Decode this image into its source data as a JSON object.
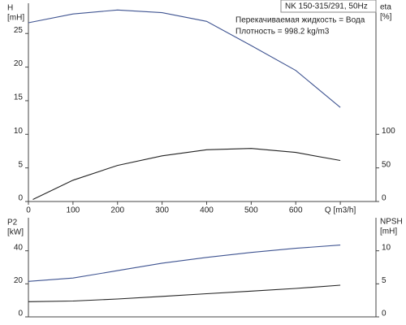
{
  "chart_data": [
    {
      "type": "line",
      "title": "NK 150-315/291, 50Hz",
      "annotations": [
        "Перекачиваемая жидкость = Вода",
        "Плотность = 998.2 kg/m3"
      ],
      "ylabel": [
        "H",
        "[mH]"
      ],
      "y2label": [
        "eta",
        "[%]"
      ],
      "xlim": [
        0,
        780
      ],
      "xticks": [
        0,
        100,
        200,
        300,
        400,
        500,
        600,
        {
          "value": 700,
          "label": "Q [m3/h]"
        }
      ],
      "ylim": [
        0,
        29.5
      ],
      "yticks": [
        0,
        5,
        10,
        15,
        20,
        25
      ],
      "y2lim": [
        0,
        295
      ],
      "y2ticks": [
        0,
        50,
        100
      ],
      "series": [
        {
          "name": "H",
          "color": "#3f5491",
          "x": [
            0,
            100,
            200,
            300,
            400,
            500,
            600,
            700
          ],
          "values": [
            26.6,
            27.9,
            28.5,
            28.1,
            26.8,
            23.2,
            19.5,
            14.0
          ]
        },
        {
          "name": "eta",
          "color": "#222222",
          "axis": "y2",
          "x": [
            10,
            100,
            200,
            300,
            400,
            500,
            600,
            700
          ],
          "values": [
            3,
            31.7,
            53.7,
            68,
            77,
            79,
            73,
            61
          ]
        }
      ]
    },
    {
      "type": "line",
      "ylabel": [
        "P2",
        "[kW]"
      ],
      "y2label": [
        "NPSH",
        "[mH]"
      ],
      "xlim": [
        0,
        780
      ],
      "ylim": [
        0,
        60
      ],
      "yticks": [
        0,
        20,
        40
      ],
      "y2lim": [
        0,
        15
      ],
      "y2ticks": [
        0,
        5,
        10
      ],
      "series": [
        {
          "name": "P2",
          "color": "#3f5491",
          "x": [
            0,
            100,
            200,
            300,
            400,
            500,
            600,
            700
          ],
          "values": [
            21.5,
            23.5,
            28,
            32.5,
            36,
            39,
            41.5,
            43.5
          ]
        },
        {
          "name": "NPSH",
          "color": "#222222",
          "axis": "y2",
          "x": [
            0,
            100,
            200,
            300,
            400,
            500,
            600,
            700
          ],
          "values": [
            2.3,
            2.4,
            2.7,
            3.1,
            3.5,
            3.9,
            4.3,
            4.8
          ]
        }
      ]
    }
  ]
}
